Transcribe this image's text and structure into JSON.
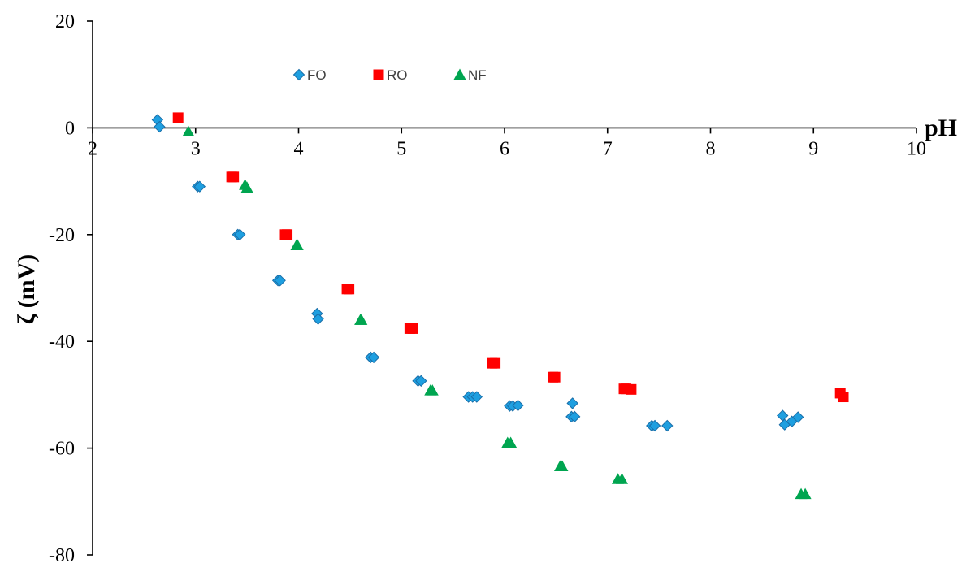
{
  "chart_data": {
    "type": "scatter",
    "title": "",
    "xlabel": "pH",
    "ylabel": "ζ (mV)",
    "xlim": [
      2,
      10
    ],
    "ylim": [
      -80,
      20
    ],
    "x_ticks": [
      "2",
      "3",
      "4",
      "5",
      "6",
      "7",
      "8",
      "9",
      "10"
    ],
    "y_ticks": [
      "20",
      "0",
      "-20",
      "-40",
      "-60",
      "-80"
    ],
    "grid": false,
    "legend_position": "top-center",
    "series": [
      {
        "name": "FO",
        "marker": "diamond",
        "color": "#1e9fe0",
        "points": [
          [
            2.63,
            1.5
          ],
          [
            2.65,
            0.2
          ],
          [
            3.02,
            -11.0
          ],
          [
            3.04,
            -11.0
          ],
          [
            3.41,
            -20.0
          ],
          [
            3.43,
            -20.0
          ],
          [
            3.8,
            -28.6
          ],
          [
            3.82,
            -28.6
          ],
          [
            4.18,
            -34.8
          ],
          [
            4.19,
            -35.8
          ],
          [
            4.7,
            -43.0
          ],
          [
            4.73,
            -43.0
          ],
          [
            5.16,
            -47.4
          ],
          [
            5.19,
            -47.4
          ],
          [
            5.65,
            -50.4
          ],
          [
            5.69,
            -50.4
          ],
          [
            5.73,
            -50.4
          ],
          [
            6.05,
            -52.1
          ],
          [
            6.08,
            -52.1
          ],
          [
            6.13,
            -52.0
          ],
          [
            6.66,
            -51.6
          ],
          [
            6.65,
            -54.1
          ],
          [
            6.68,
            -54.1
          ],
          [
            7.43,
            -55.8
          ],
          [
            7.46,
            -55.8
          ],
          [
            7.58,
            -55.8
          ],
          [
            8.7,
            -53.9
          ],
          [
            8.72,
            -55.6
          ],
          [
            8.79,
            -55.0
          ],
          [
            8.85,
            -54.2
          ]
        ]
      },
      {
        "name": "RO",
        "marker": "square",
        "color": "#ff0000",
        "points": [
          [
            2.83,
            1.9
          ],
          [
            3.35,
            -9.2
          ],
          [
            3.37,
            -9.2
          ],
          [
            3.87,
            -20.0
          ],
          [
            3.89,
            -20.0
          ],
          [
            4.47,
            -30.2
          ],
          [
            4.49,
            -30.2
          ],
          [
            5.08,
            -37.6
          ],
          [
            5.11,
            -37.6
          ],
          [
            5.88,
            -44.1
          ],
          [
            5.91,
            -44.1
          ],
          [
            6.47,
            -46.7
          ],
          [
            6.49,
            -46.7
          ],
          [
            7.16,
            -48.9
          ],
          [
            7.18,
            -48.9
          ],
          [
            7.23,
            -49.0
          ],
          [
            9.26,
            -49.7
          ],
          [
            9.29,
            -50.4
          ]
        ]
      },
      {
        "name": "NF",
        "marker": "triangle",
        "color": "#00a550",
        "points": [
          [
            2.93,
            -0.7
          ],
          [
            3.48,
            -10.7
          ],
          [
            3.5,
            -11.2
          ],
          [
            3.98,
            -22.0
          ],
          [
            3.99,
            -22.0
          ],
          [
            4.6,
            -36.0
          ],
          [
            4.61,
            -36.0
          ],
          [
            5.28,
            -49.2
          ],
          [
            5.3,
            -49.2
          ],
          [
            6.03,
            -59.0
          ],
          [
            6.06,
            -59.0
          ],
          [
            6.54,
            -63.4
          ],
          [
            6.56,
            -63.4
          ],
          [
            7.1,
            -65.8
          ],
          [
            7.14,
            -65.8
          ],
          [
            8.88,
            -68.6
          ],
          [
            8.92,
            -68.6
          ]
        ]
      }
    ]
  }
}
